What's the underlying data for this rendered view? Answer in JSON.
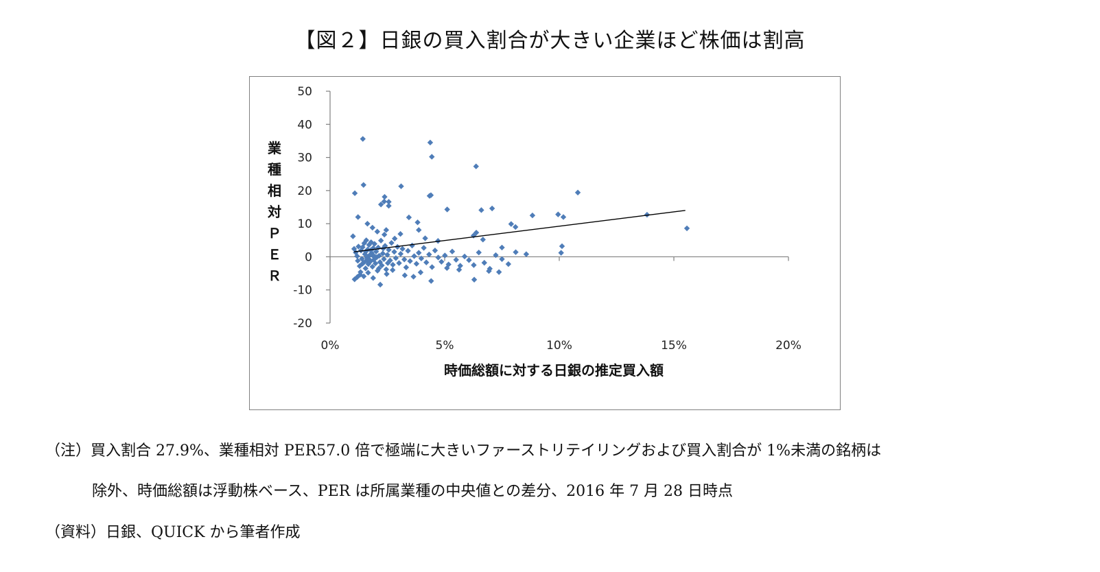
{
  "title": "【図２】日銀の買入割合が大きい企業ほど株価は割高",
  "notes": {
    "line1": "（注）買入割合 27.9%、業種相対 PER57.0 倍で極端に大きいファーストリテイリングおよび買入割合が 1%未満の銘柄は",
    "line2": "除外、時価総額は浮動株ベース、PER は所属業種の中央値との差分、2016 年 7 月 28 日時点",
    "line3": "（資料）日銀、QUICK から筆者作成"
  },
  "chart_data": {
    "type": "scatter",
    "xlabel": "時価総額に対する日銀の推定買入額",
    "ylabel": "業種相対ＰＥＲ",
    "xlim": [
      0,
      0.2
    ],
    "ylim": [
      -20,
      50
    ],
    "x_ticks": [
      0,
      0.05,
      0.1,
      0.15,
      0.2
    ],
    "x_tick_labels": [
      "0%",
      "5%",
      "10%",
      "15%",
      "20%"
    ],
    "y_ticks": [
      -20,
      -10,
      0,
      10,
      20,
      30,
      40,
      50
    ],
    "y_tick_labels": [
      "-20",
      "-10",
      "0",
      "10",
      "20",
      "30",
      "40",
      "50"
    ],
    "marker_color": "#4f7db8",
    "trendline": {
      "x": [
        0.0105,
        0.155
      ],
      "y": [
        1.5,
        14.0
      ],
      "color": "#000000"
    },
    "points": [
      [
        0.0143,
        35.6
      ],
      [
        0.0437,
        34.5
      ],
      [
        0.0444,
        30.2
      ],
      [
        0.0637,
        27.3
      ],
      [
        0.0146,
        21.7
      ],
      [
        0.031,
        21.3
      ],
      [
        0.0108,
        19.2
      ],
      [
        0.0238,
        18.1
      ],
      [
        0.0236,
        16.7
      ],
      [
        0.0256,
        16.6
      ],
      [
        0.0222,
        15.8
      ],
      [
        0.0256,
        15.4
      ],
      [
        0.0434,
        18.4
      ],
      [
        0.044,
        18.6
      ],
      [
        0.0511,
        14.3
      ],
      [
        0.066,
        14.1
      ],
      [
        0.0707,
        14.6
      ],
      [
        0.0883,
        12.5
      ],
      [
        0.0995,
        12.8
      ],
      [
        0.1018,
        12.0
      ],
      [
        0.1081,
        19.4
      ],
      [
        0.1383,
        12.7
      ],
      [
        0.1557,
        8.6
      ],
      [
        0.079,
        9.9
      ],
      [
        0.0809,
        9.0
      ],
      [
        0.0122,
        12.0
      ],
      [
        0.0163,
        10.0
      ],
      [
        0.0185,
        8.8
      ],
      [
        0.0206,
        7.6
      ],
      [
        0.0245,
        8.1
      ],
      [
        0.0237,
        6.7
      ],
      [
        0.0282,
        5.5
      ],
      [
        0.0307,
        6.9
      ],
      [
        0.0344,
        11.9
      ],
      [
        0.0382,
        10.4
      ],
      [
        0.0387,
        8.1
      ],
      [
        0.0415,
        5.6
      ],
      [
        0.0471,
        4.8
      ],
      [
        0.0626,
        6.4
      ],
      [
        0.0638,
        7.3
      ],
      [
        0.0667,
        5.2
      ],
      [
        0.075,
        2.8
      ],
      [
        0.01,
        6.2
      ],
      [
        0.0105,
        2.4
      ],
      [
        0.0112,
        1.3
      ],
      [
        0.0118,
        0.2
      ],
      [
        0.0121,
        -1.2
      ],
      [
        0.0124,
        3.1
      ],
      [
        0.0129,
        -2.8
      ],
      [
        0.0133,
        -4.6
      ],
      [
        0.0135,
        1.9
      ],
      [
        0.0139,
        -0.6
      ],
      [
        0.0142,
        2.9
      ],
      [
        0.0146,
        -1.8
      ],
      [
        0.0149,
        4.1
      ],
      [
        0.0152,
        0.8
      ],
      [
        0.0155,
        -3.5
      ],
      [
        0.0158,
        5.0
      ],
      [
        0.0161,
        -0.3
      ],
      [
        0.0164,
        2.2
      ],
      [
        0.0167,
        -2.2
      ],
      [
        0.017,
        3.6
      ],
      [
        0.0173,
        0.5
      ],
      [
        0.0176,
        -1.4
      ],
      [
        0.0179,
        4.4
      ],
      [
        0.0182,
        1.1
      ],
      [
        0.0185,
        -3.0
      ],
      [
        0.0188,
        2.6
      ],
      [
        0.0191,
        -0.9
      ],
      [
        0.0194,
        3.9
      ],
      [
        0.0198,
        -2.0
      ],
      [
        0.0201,
        1.6
      ],
      [
        0.0204,
        -0.1
      ],
      [
        0.0207,
        -4.2
      ],
      [
        0.021,
        2.8
      ],
      [
        0.0214,
        0.3
      ],
      [
        0.0218,
        -1.6
      ],
      [
        0.0222,
        4.9
      ],
      [
        0.0226,
        -2.6
      ],
      [
        0.023,
        1.0
      ],
      [
        0.0235,
        -0.7
      ],
      [
        0.024,
        3.3
      ],
      [
        0.0245,
        -3.8
      ],
      [
        0.025,
        0.6
      ],
      [
        0.0256,
        2.1
      ],
      [
        0.0262,
        -1.1
      ],
      [
        0.0268,
        4.2
      ],
      [
        0.0274,
        -2.4
      ],
      [
        0.028,
        1.5
      ],
      [
        0.0287,
        -0.4
      ],
      [
        0.0294,
        3.0
      ],
      [
        0.0301,
        -1.9
      ],
      [
        0.0308,
        0.9
      ],
      [
        0.0316,
        2.4
      ],
      [
        0.0324,
        -0.8
      ],
      [
        0.0332,
        -3.2
      ],
      [
        0.034,
        1.8
      ],
      [
        0.0349,
        -1.3
      ],
      [
        0.0358,
        3.4
      ],
      [
        0.0367,
        0.2
      ],
      [
        0.0377,
        -2.1
      ],
      [
        0.0387,
        1.2
      ],
      [
        0.0398,
        -0.5
      ],
      [
        0.0409,
        2.7
      ],
      [
        0.042,
        -1.7
      ],
      [
        0.0432,
        0.7
      ],
      [
        0.0445,
        -3.1
      ],
      [
        0.0458,
        1.9
      ],
      [
        0.0472,
        -0.2
      ],
      [
        0.0486,
        -1.5
      ],
      [
        0.0501,
        0.4
      ],
      [
        0.0517,
        -2.3
      ],
      [
        0.0533,
        1.6
      ],
      [
        0.055,
        -0.9
      ],
      [
        0.0568,
        -2.7
      ],
      [
        0.0587,
        0.1
      ],
      [
        0.0606,
        -1.0
      ],
      [
        0.0627,
        -2.5
      ],
      [
        0.0649,
        1.3
      ],
      [
        0.0673,
        -1.8
      ],
      [
        0.0697,
        -3.6
      ],
      [
        0.0723,
        0.5
      ],
      [
        0.075,
        -0.7
      ],
      [
        0.0778,
        -2.2
      ],
      [
        0.081,
        1.4
      ],
      [
        0.0856,
        0.8
      ],
      [
        0.1008,
        1.2
      ],
      [
        0.1012,
        3.2
      ],
      [
        0.0107,
        -6.8
      ],
      [
        0.0119,
        -6.1
      ],
      [
        0.0131,
        -5.4
      ],
      [
        0.0147,
        -5.9
      ],
      [
        0.0166,
        -4.8
      ],
      [
        0.0188,
        -6.4
      ],
      [
        0.0219,
        -8.4
      ],
      [
        0.0247,
        -5.2
      ],
      [
        0.0273,
        -4.0
      ],
      [
        0.0326,
        -5.6
      ],
      [
        0.0364,
        -6.0
      ],
      [
        0.0395,
        -4.7
      ],
      [
        0.0441,
        -7.3
      ],
      [
        0.051,
        -3.4
      ],
      [
        0.0563,
        -3.9
      ],
      [
        0.0629,
        -6.9
      ],
      [
        0.0693,
        -4.3
      ],
      [
        0.0737,
        -4.6
      ],
      [
        0.0141,
        -2.1
      ],
      [
        0.0156,
        1.6
      ],
      [
        0.0171,
        -0.8
      ],
      [
        0.0186,
        0.4
      ],
      [
        0.0159,
        -1.1
      ],
      [
        0.0177,
        2.0
      ],
      [
        0.0195,
        0.1
      ],
      [
        0.0213,
        -3.5
      ],
      [
        0.0232,
        2.5
      ],
      [
        0.0252,
        -1.9
      ]
    ]
  }
}
